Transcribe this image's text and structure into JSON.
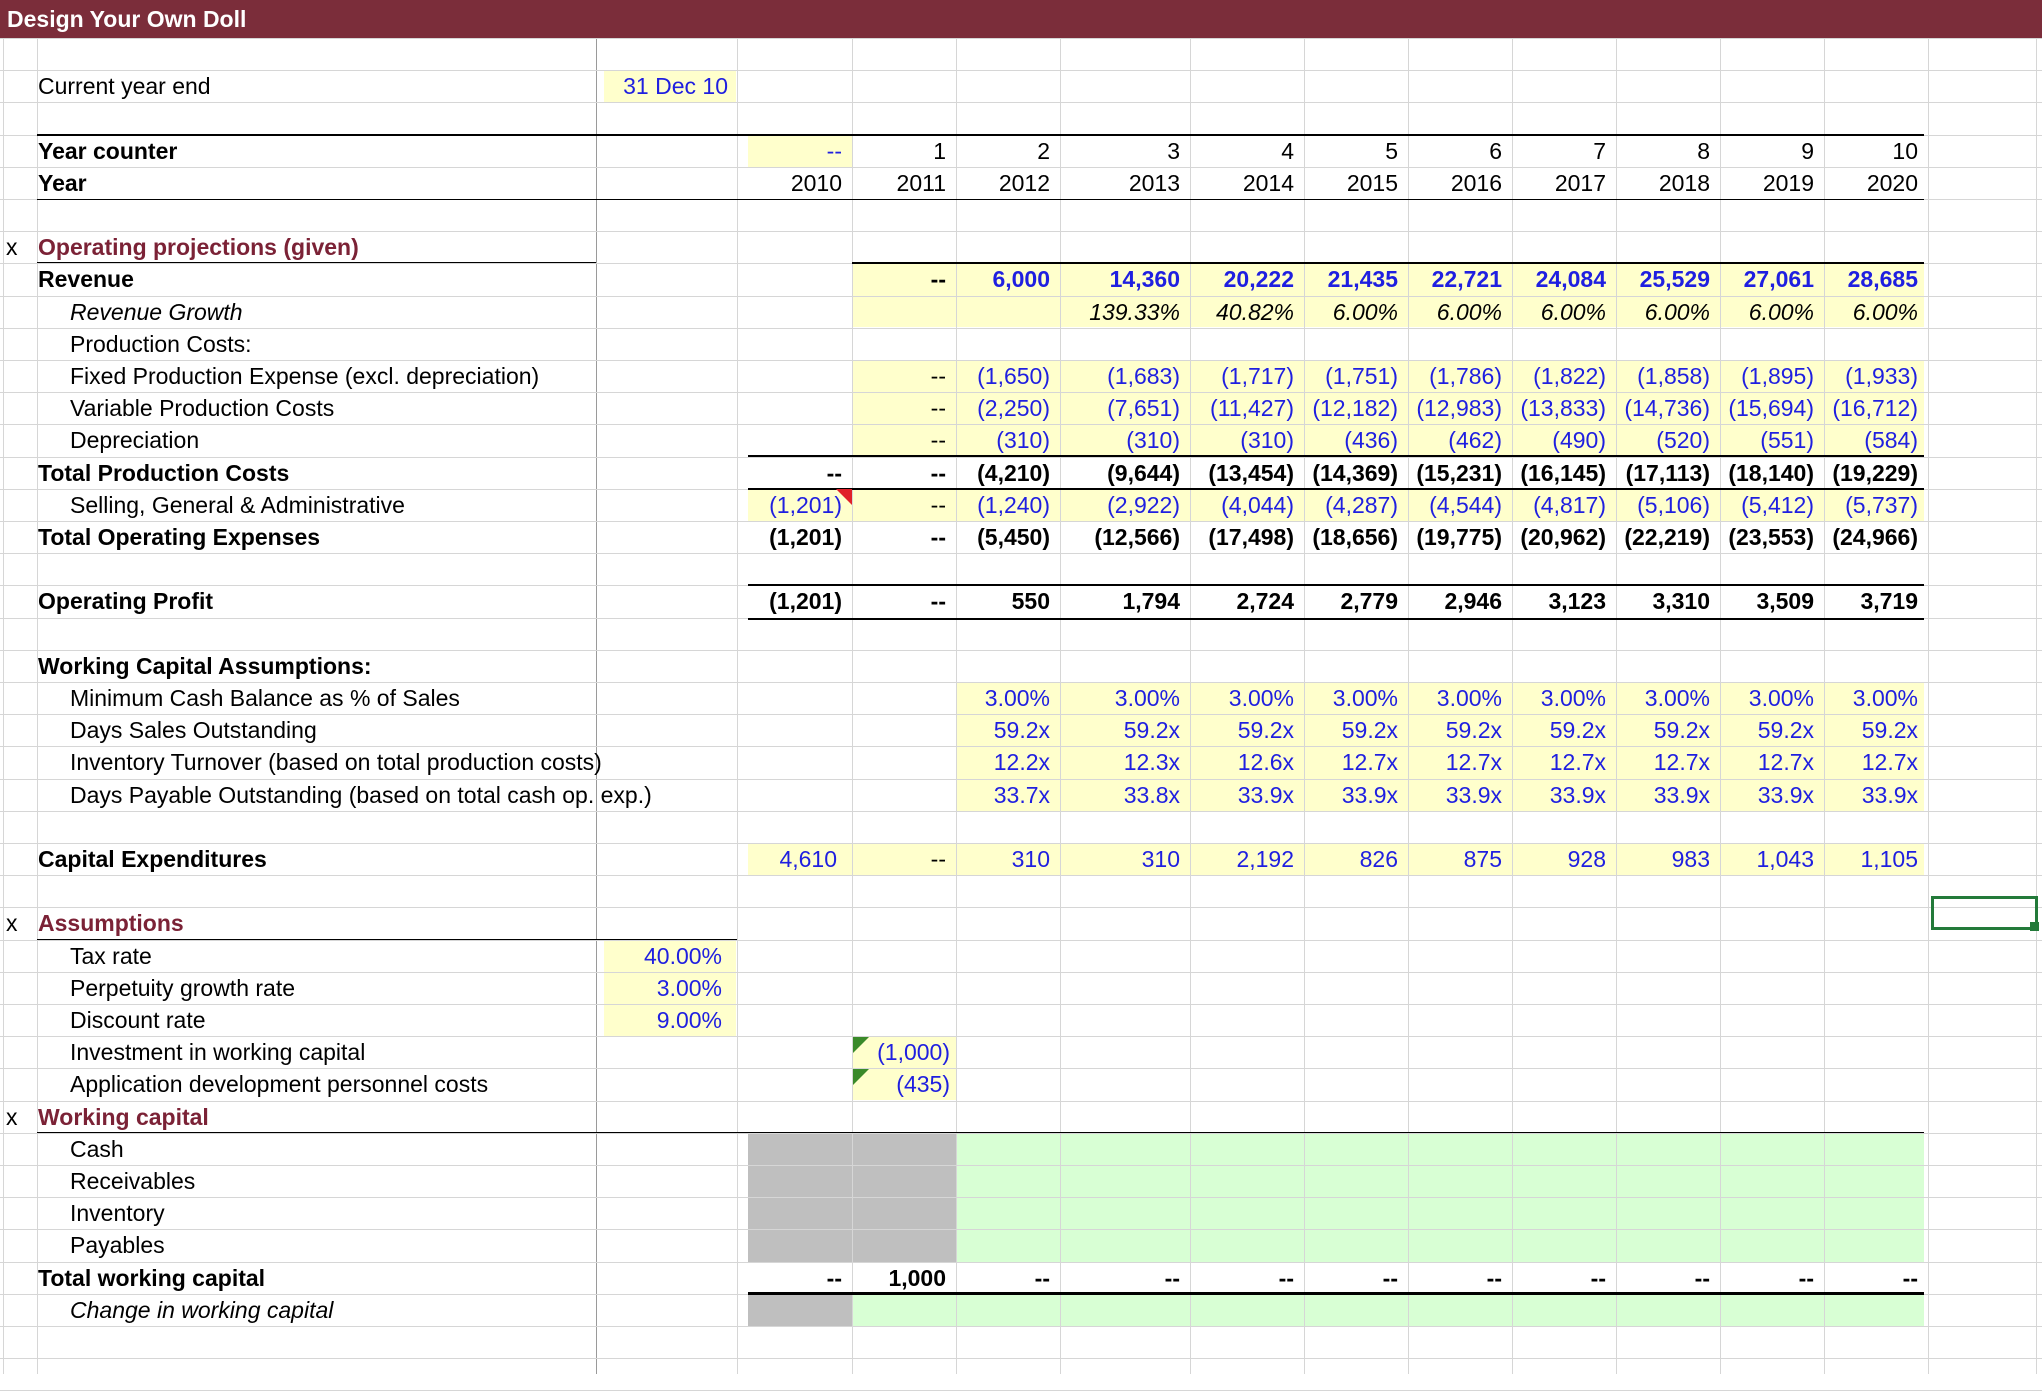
{
  "title": "Design Your Own Doll",
  "current_year_end": {
    "label": "Current year end",
    "value": "31 Dec 10"
  },
  "year_counter": {
    "label": "Year counter",
    "values": [
      "--",
      "1",
      "2",
      "3",
      "4",
      "5",
      "6",
      "7",
      "8",
      "9",
      "10"
    ]
  },
  "year": {
    "label": "Year",
    "values": [
      "2010",
      "2011",
      "2012",
      "2013",
      "2014",
      "2015",
      "2016",
      "2017",
      "2018",
      "2019",
      "2020"
    ]
  },
  "sections": {
    "operating": {
      "marker": "x",
      "label": "Operating projections (given)"
    },
    "assumptions": {
      "marker": "x",
      "label": "Assumptions"
    },
    "working_capital": {
      "marker": "x",
      "label": "Working capital"
    }
  },
  "operating_rows": [
    {
      "label": "Revenue",
      "style": "bold",
      "color": "blue",
      "values": [
        "",
        "--",
        "6,000",
        "14,360",
        "20,222",
        "21,435",
        "22,721",
        "24,084",
        "25,529",
        "27,061",
        "28,685"
      ]
    },
    {
      "label": "Revenue Growth",
      "style": "italic",
      "indent": true,
      "color": "black",
      "values": [
        "",
        "",
        "",
        "139.33%",
        "40.82%",
        "6.00%",
        "6.00%",
        "6.00%",
        "6.00%",
        "6.00%",
        "6.00%"
      ]
    },
    {
      "label": "Production Costs:",
      "indent": true,
      "values": [
        "",
        "",
        "",
        "",
        "",
        "",
        "",
        "",
        "",
        "",
        ""
      ]
    },
    {
      "label": "Fixed Production Expense (excl. depreciation)",
      "indent": true,
      "color": "blue",
      "values": [
        "",
        "--",
        "(1,650)",
        "(1,683)",
        "(1,717)",
        "(1,751)",
        "(1,786)",
        "(1,822)",
        "(1,858)",
        "(1,895)",
        "(1,933)"
      ]
    },
    {
      "label": "Variable Production Costs",
      "indent": true,
      "color": "blue",
      "values": [
        "",
        "--",
        "(2,250)",
        "(7,651)",
        "(11,427)",
        "(12,182)",
        "(12,983)",
        "(13,833)",
        "(14,736)",
        "(15,694)",
        "(16,712)"
      ]
    },
    {
      "label": "Depreciation",
      "indent": true,
      "color": "blue",
      "values": [
        "",
        "--",
        "(310)",
        "(310)",
        "(310)",
        "(436)",
        "(462)",
        "(490)",
        "(520)",
        "(551)",
        "(584)"
      ]
    },
    {
      "label": "Total Production Costs",
      "style": "bold",
      "color": "black",
      "values": [
        "--",
        "--",
        "(4,210)",
        "(9,644)",
        "(13,454)",
        "(14,369)",
        "(15,231)",
        "(16,145)",
        "(17,113)",
        "(18,140)",
        "(19,229)"
      ]
    },
    {
      "label": "Selling, General & Administrative",
      "indent": true,
      "color": "blue",
      "values": [
        "(1,201)",
        "--",
        "(1,240)",
        "(2,922)",
        "(4,044)",
        "(4,287)",
        "(4,544)",
        "(4,817)",
        "(5,106)",
        "(5,412)",
        "(5,737)"
      ]
    },
    {
      "label": "Total Operating Expenses",
      "style": "bold",
      "color": "black",
      "values": [
        "(1,201)",
        "--",
        "(5,450)",
        "(12,566)",
        "(17,498)",
        "(18,656)",
        "(19,775)",
        "(20,962)",
        "(22,219)",
        "(23,553)",
        "(24,966)"
      ]
    }
  ],
  "operating_profit": {
    "label": "Operating Profit",
    "values": [
      "(1,201)",
      "--",
      "550",
      "1,794",
      "2,724",
      "2,779",
      "2,946",
      "3,123",
      "3,310",
      "3,509",
      "3,719"
    ]
  },
  "working_capital_assumptions": {
    "label": "Working Capital Assumptions:",
    "rows": [
      {
        "label": "Minimum Cash Balance as % of Sales",
        "values": [
          "",
          "",
          "3.00%",
          "3.00%",
          "3.00%",
          "3.00%",
          "3.00%",
          "3.00%",
          "3.00%",
          "3.00%",
          "3.00%"
        ]
      },
      {
        "label": "Days Sales Outstanding",
        "values": [
          "",
          "",
          "59.2x",
          "59.2x",
          "59.2x",
          "59.2x",
          "59.2x",
          "59.2x",
          "59.2x",
          "59.2x",
          "59.2x"
        ]
      },
      {
        "label": "Inventory Turnover (based on total production costs)",
        "values": [
          "",
          "",
          "12.2x",
          "12.3x",
          "12.6x",
          "12.7x",
          "12.7x",
          "12.7x",
          "12.7x",
          "12.7x",
          "12.7x"
        ]
      },
      {
        "label": "Days Payable Outstanding (based on total cash op. exp.)",
        "values": [
          "",
          "",
          "33.7x",
          "33.8x",
          "33.9x",
          "33.9x",
          "33.9x",
          "33.9x",
          "33.9x",
          "33.9x",
          "33.9x"
        ]
      }
    ]
  },
  "capex": {
    "label": "Capital Expenditures",
    "values": [
      "4,610",
      "--",
      "310",
      "310",
      "2,192",
      "826",
      "875",
      "928",
      "983",
      "1,043",
      "1,105"
    ]
  },
  "assumptions": [
    {
      "label": "Tax rate",
      "value": "40.00%"
    },
    {
      "label": "Perpetuity growth rate",
      "value": "3.00%"
    },
    {
      "label": "Discount rate",
      "value": "9.00%"
    },
    {
      "label": "Investment in working capital",
      "value_2011": "(1,000)"
    },
    {
      "label": "Application development personnel costs",
      "value_2011": "(435)"
    }
  ],
  "working_capital_rows": [
    {
      "label": "Cash"
    },
    {
      "label": "Receivables"
    },
    {
      "label": "Inventory"
    },
    {
      "label": "Payables"
    }
  ],
  "total_working_capital": {
    "label": "Total working capital",
    "values": [
      "--",
      "1,000",
      "--",
      "--",
      "--",
      "--",
      "--",
      "--",
      "--",
      "--",
      "--"
    ]
  },
  "change_in_working_capital": {
    "label": "Change in working capital"
  },
  "colors": {
    "title_bar": "#7b2d3a",
    "input_fill": "#ffffcc",
    "input_text": "#1f1fe0",
    "section_text": "#7b2236",
    "calc_fill": "#d8ffd4",
    "blank_fill": "#bfbfbf",
    "selection": "#237a3a"
  }
}
